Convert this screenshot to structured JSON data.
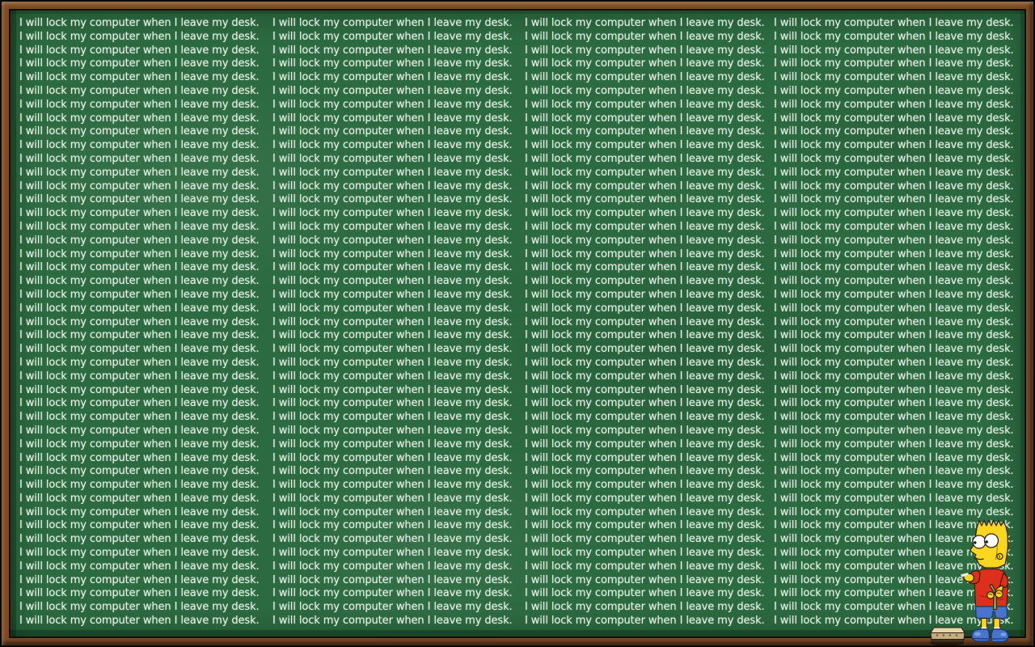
{
  "wallpaper": {
    "sentence": "I will lock my computer when I leave my desk.",
    "columns": 4,
    "rows_per_column": 45,
    "colors": {
      "board_green": "#2c6a41",
      "board_bevel_green": "#1d4b2d",
      "chalk_white": "#e6f2e8",
      "frame_wood_brown": "#7d4a22",
      "bart_skin_yellow": "#f8d71e",
      "bart_shirt_red": "#dd2f1c",
      "bart_shorts_blue": "#4a74cc",
      "slingshot_tan": "#c49a4e",
      "eraser_tan": "#e6d6aa"
    },
    "scene": {
      "figure": "Bart Simpson writing lines on a chalkboard with chalk",
      "props": [
        "chalk stick",
        "chalkboard eraser",
        "slingshot held behind back"
      ]
    }
  }
}
